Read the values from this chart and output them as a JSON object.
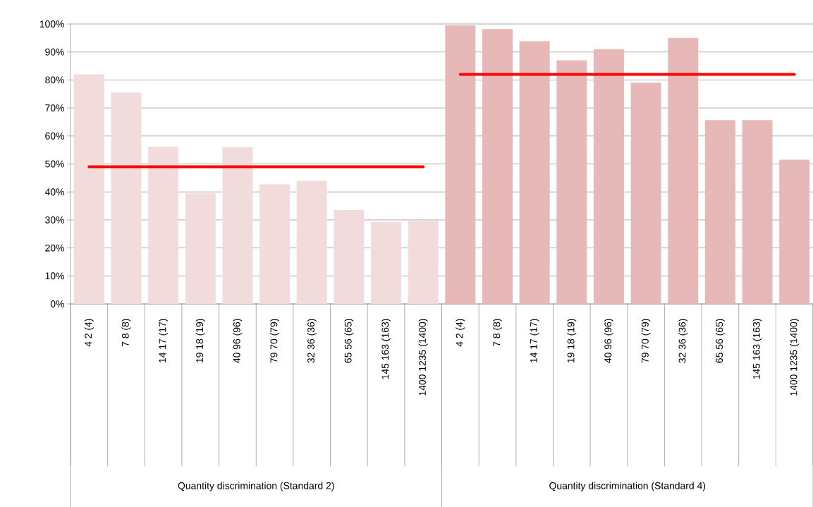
{
  "chart_data": {
    "type": "bar",
    "categories": [
      "4 2 (4)",
      "7 8 (8)",
      "14 17 (17)",
      "19 18 (19)",
      "40 96 (96)",
      "79 70 (79)",
      "32 36 (36)",
      "65 56 (65)",
      "145 163 (163)",
      "1400 1235 (1400)",
      "4 2 (4)",
      "7 8 (8)",
      "14 17 (17)",
      "19 18 (19)",
      "40 96 (96)",
      "79 70 (79)",
      "32 36 (36)",
      "65 56 (65)",
      "145 163 (163)",
      "1400 1235 (1400)"
    ],
    "series": [
      {
        "type": "bar",
        "color": "#f2dcdb",
        "values": [
          82,
          75.5,
          56.2,
          39.5,
          56,
          42.7,
          44,
          33.5,
          29.3,
          29.7,
          null,
          null,
          null,
          null,
          null,
          null,
          null,
          null,
          null,
          null
        ]
      },
      {
        "color": "#e6b9b8",
        "values": [
          null,
          null,
          null,
          null,
          null,
          null,
          null,
          null,
          null,
          null,
          99.5,
          98.2,
          93.8,
          87,
          91,
          79,
          95,
          65.7,
          65.7,
          51.5
        ]
      },
      {
        "type": "line",
        "color": "#ff0000",
        "marker": "none",
        "values": [
          49,
          49,
          49,
          49,
          49,
          49,
          49,
          49,
          49,
          49,
          null,
          null,
          null,
          null,
          null,
          null,
          null,
          null,
          null,
          null
        ]
      },
      {
        "type": "line",
        "color": "#ff0000",
        "marker": "none",
        "values": [
          null,
          null,
          null,
          null,
          null,
          null,
          null,
          null,
          null,
          null,
          82,
          82,
          82,
          82,
          82,
          82,
          82,
          82,
          82,
          82
        ]
      }
    ],
    "ylim": [
      0,
      100
    ],
    "yticks": [
      {
        "value": 0,
        "label": "0%"
      },
      {
        "value": 10,
        "label": "10%"
      },
      {
        "value": 20,
        "label": "20%"
      },
      {
        "value": 30,
        "label": "30%"
      },
      {
        "value": 40,
        "label": "40%"
      },
      {
        "value": 50,
        "label": "50%"
      },
      {
        "value": 60,
        "label": "60%"
      },
      {
        "value": 70,
        "label": "70%"
      },
      {
        "value": 80,
        "label": "80%"
      },
      {
        "value": 90,
        "label": "90%"
      },
      {
        "value": 100,
        "label": "100%"
      }
    ],
    "grid": "y",
    "annotations": [
      "Quantity discrimination (Standard 2)",
      "Quantity discrimination (Standard 4)"
    ]
  }
}
